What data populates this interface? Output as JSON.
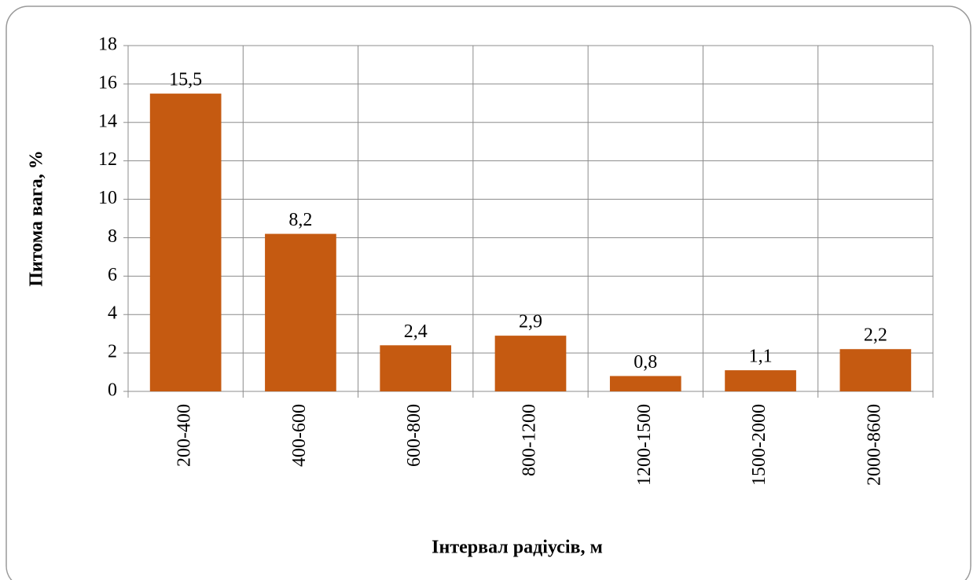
{
  "chart_data": {
    "type": "bar",
    "categories": [
      "200-400",
      "400-600",
      "600-800",
      "800-1200",
      "1200-1500",
      "1500-2000",
      "2000-8600"
    ],
    "values": [
      15.5,
      8.2,
      2.4,
      2.9,
      0.8,
      1.1,
      2.2
    ],
    "value_labels": [
      "15,5",
      "8,2",
      "2,4",
      "2,9",
      "0,8",
      "1,1",
      "2,2"
    ],
    "color": "#c55a11",
    "xlabel": "Інтервал радіусів, м",
    "ylabel": "Питома вага, %",
    "ylim": [
      0,
      18
    ],
    "yticks": [
      0,
      2,
      4,
      6,
      8,
      10,
      12,
      14,
      16,
      18
    ],
    "grid": true
  }
}
